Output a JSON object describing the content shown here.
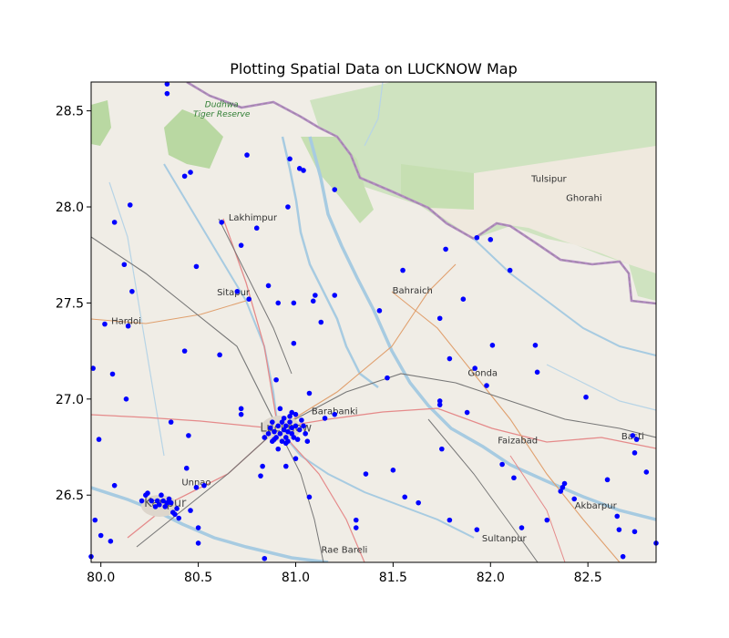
{
  "chart_data": {
    "type": "scatter",
    "title": "Plotting Spatial Data on LUCKNOW Map",
    "xlabel": "",
    "ylabel": "",
    "xlim": [
      79.95,
      82.85
    ],
    "ylim": [
      26.15,
      28.65
    ],
    "x_ticks": [
      80.0,
      80.5,
      81.0,
      81.5,
      82.0,
      82.5
    ],
    "x_tick_labels": [
      "80.0",
      "80.5",
      "81.0",
      "81.5",
      "82.0",
      "82.5"
    ],
    "y_ticks": [
      26.5,
      27.0,
      27.5,
      28.0,
      28.5
    ],
    "y_tick_labels": [
      "26.5",
      "27.0",
      "27.5",
      "28.0",
      "28.5"
    ],
    "marker_color": "#0000ff",
    "basemap_labels": [
      {
        "text": "Dudhwa",
        "lon": 80.62,
        "lat": 28.52,
        "kind": "park"
      },
      {
        "text": "Tiger Reserve",
        "lon": 80.62,
        "lat": 28.47,
        "kind": "park"
      },
      {
        "text": "Tulsipur",
        "lon": 82.3,
        "lat": 28.13,
        "kind": "town"
      },
      {
        "text": "Ghorahi",
        "lon": 82.48,
        "lat": 28.03,
        "kind": "town"
      },
      {
        "text": "Lakhimpur",
        "lon": 80.78,
        "lat": 27.93,
        "kind": "town"
      },
      {
        "text": "Sitapur",
        "lon": 80.68,
        "lat": 27.54,
        "kind": "town"
      },
      {
        "text": "Bahraich",
        "lon": 81.6,
        "lat": 27.55,
        "kind": "town"
      },
      {
        "text": "Hardoi",
        "lon": 80.13,
        "lat": 27.39,
        "kind": "town"
      },
      {
        "text": "Gonda",
        "lon": 81.96,
        "lat": 27.12,
        "kind": "town"
      },
      {
        "text": "Barabanki",
        "lon": 81.2,
        "lat": 26.92,
        "kind": "town"
      },
      {
        "text": "Lucknow",
        "lon": 80.95,
        "lat": 26.83,
        "kind": "city"
      },
      {
        "text": "Faizabad",
        "lon": 82.14,
        "lat": 26.77,
        "kind": "town"
      },
      {
        "text": "Basti",
        "lon": 82.73,
        "lat": 26.79,
        "kind": "town"
      },
      {
        "text": "Unnao",
        "lon": 80.49,
        "lat": 26.55,
        "kind": "town"
      },
      {
        "text": "Kanpur",
        "lon": 80.33,
        "lat": 26.44,
        "kind": "city"
      },
      {
        "text": "Akbarpur",
        "lon": 82.54,
        "lat": 26.43,
        "kind": "town"
      },
      {
        "text": "Sultanpur",
        "lon": 82.07,
        "lat": 26.26,
        "kind": "town"
      },
      {
        "text": "Rae Bareli",
        "lon": 81.25,
        "lat": 26.2,
        "kind": "town"
      }
    ],
    "points": [
      [
        80.34,
        28.64
      ],
      [
        80.34,
        28.59
      ],
      [
        80.43,
        28.16
      ],
      [
        80.46,
        28.18
      ],
      [
        80.75,
        28.27
      ],
      [
        80.97,
        28.25
      ],
      [
        81.02,
        28.2
      ],
      [
        81.04,
        28.19
      ],
      [
        81.2,
        28.09
      ],
      [
        80.96,
        28.0
      ],
      [
        80.07,
        27.92
      ],
      [
        80.15,
        28.01
      ],
      [
        80.62,
        27.92
      ],
      [
        80.8,
        27.89
      ],
      [
        80.72,
        27.8
      ],
      [
        80.12,
        27.7
      ],
      [
        80.16,
        27.56
      ],
      [
        80.49,
        27.69
      ],
      [
        80.7,
        27.56
      ],
      [
        80.76,
        27.52
      ],
      [
        80.86,
        27.59
      ],
      [
        80.91,
        27.5
      ],
      [
        80.99,
        27.5
      ],
      [
        81.1,
        27.54
      ],
      [
        81.09,
        27.51
      ],
      [
        81.2,
        27.54
      ],
      [
        81.13,
        27.4
      ],
      [
        80.02,
        27.39
      ],
      [
        80.14,
        27.38
      ],
      [
        80.43,
        27.25
      ],
      [
        80.61,
        27.23
      ],
      [
        80.99,
        27.29
      ],
      [
        79.96,
        27.16
      ],
      [
        80.06,
        27.13
      ],
      [
        80.13,
        27.0
      ],
      [
        80.9,
        27.1
      ],
      [
        81.07,
        27.03
      ],
      [
        81.43,
        27.46
      ],
      [
        81.55,
        27.67
      ],
      [
        81.74,
        27.42
      ],
      [
        81.77,
        27.78
      ],
      [
        81.86,
        27.52
      ],
      [
        81.93,
        27.84
      ],
      [
        82.0,
        27.83
      ],
      [
        82.1,
        27.67
      ],
      [
        82.23,
        27.28
      ],
      [
        82.01,
        27.28
      ],
      [
        81.79,
        27.21
      ],
      [
        81.92,
        27.16
      ],
      [
        81.98,
        27.07
      ],
      [
        82.24,
        27.14
      ],
      [
        82.49,
        27.01
      ],
      [
        81.47,
        27.11
      ],
      [
        81.74,
        26.99
      ],
      [
        81.74,
        26.97
      ],
      [
        81.88,
        26.93
      ],
      [
        80.72,
        26.95
      ],
      [
        80.72,
        26.92
      ],
      [
        80.36,
        26.88
      ],
      [
        80.45,
        26.81
      ],
      [
        79.99,
        26.79
      ],
      [
        80.07,
        26.55
      ],
      [
        80.44,
        26.64
      ],
      [
        80.49,
        26.54
      ],
      [
        80.53,
        26.55
      ],
      [
        80.83,
        26.65
      ],
      [
        80.82,
        26.6
      ],
      [
        80.95,
        26.65
      ],
      [
        81.0,
        26.69
      ],
      [
        81.07,
        26.49
      ],
      [
        81.15,
        26.9
      ],
      [
        81.2,
        26.92
      ],
      [
        81.36,
        26.61
      ],
      [
        81.5,
        26.63
      ],
      [
        81.56,
        26.49
      ],
      [
        81.63,
        26.46
      ],
      [
        81.75,
        26.74
      ],
      [
        81.79,
        26.37
      ],
      [
        81.93,
        26.32
      ],
      [
        82.06,
        26.66
      ],
      [
        82.12,
        26.59
      ],
      [
        82.16,
        26.33
      ],
      [
        82.29,
        26.37
      ],
      [
        82.36,
        26.52
      ],
      [
        82.37,
        26.54
      ],
      [
        82.38,
        26.56
      ],
      [
        82.43,
        26.48
      ],
      [
        82.6,
        26.58
      ],
      [
        82.65,
        26.39
      ],
      [
        82.66,
        26.32
      ],
      [
        82.68,
        26.18
      ],
      [
        82.74,
        26.31
      ],
      [
        82.73,
        26.81
      ],
      [
        82.75,
        26.79
      ],
      [
        82.74,
        26.72
      ],
      [
        82.8,
        26.62
      ],
      [
        82.85,
        26.25
      ],
      [
        80.0,
        26.29
      ],
      [
        79.97,
        26.37
      ],
      [
        79.95,
        26.18
      ],
      [
        80.05,
        26.26
      ],
      [
        80.21,
        26.47
      ],
      [
        80.23,
        26.5
      ],
      [
        80.24,
        26.51
      ],
      [
        80.26,
        26.47
      ],
      [
        80.28,
        26.44
      ],
      [
        80.29,
        26.47
      ],
      [
        80.3,
        26.45
      ],
      [
        80.31,
        26.5
      ],
      [
        80.32,
        26.47
      ],
      [
        80.33,
        26.44
      ],
      [
        80.34,
        26.46
      ],
      [
        80.35,
        26.48
      ],
      [
        80.36,
        26.46
      ],
      [
        80.37,
        26.41
      ],
      [
        80.38,
        26.4
      ],
      [
        80.39,
        26.43
      ],
      [
        80.4,
        26.38
      ],
      [
        80.46,
        26.42
      ],
      [
        80.5,
        26.33
      ],
      [
        80.5,
        26.25
      ],
      [
        80.84,
        26.17
      ],
      [
        81.31,
        26.37
      ],
      [
        81.31,
        26.33
      ],
      [
        80.84,
        26.8
      ],
      [
        80.86,
        26.82
      ],
      [
        80.87,
        26.85
      ],
      [
        80.88,
        26.88
      ],
      [
        80.88,
        26.78
      ],
      [
        80.89,
        26.83
      ],
      [
        80.9,
        26.8
      ],
      [
        80.91,
        26.86
      ],
      [
        80.91,
        26.74
      ],
      [
        80.92,
        26.82
      ],
      [
        80.93,
        26.88
      ],
      [
        80.93,
        26.78
      ],
      [
        80.94,
        26.84
      ],
      [
        80.94,
        26.9
      ],
      [
        80.95,
        26.8
      ],
      [
        80.95,
        26.86
      ],
      [
        80.96,
        26.83
      ],
      [
        80.96,
        26.78
      ],
      [
        80.97,
        26.88
      ],
      [
        80.97,
        26.91
      ],
      [
        80.98,
        26.82
      ],
      [
        80.98,
        26.85
      ],
      [
        80.99,
        26.8
      ],
      [
        81.0,
        26.86
      ],
      [
        81.02,
        26.84
      ],
      [
        81.03,
        26.89
      ],
      [
        81.04,
        26.86
      ],
      [
        81.05,
        26.82
      ],
      [
        81.06,
        26.78
      ],
      [
        80.92,
        26.95
      ],
      [
        80.98,
        26.93
      ],
      [
        81.0,
        26.92
      ],
      [
        80.95,
        26.77
      ],
      [
        80.89,
        26.79
      ],
      [
        81.01,
        26.79
      ]
    ]
  }
}
